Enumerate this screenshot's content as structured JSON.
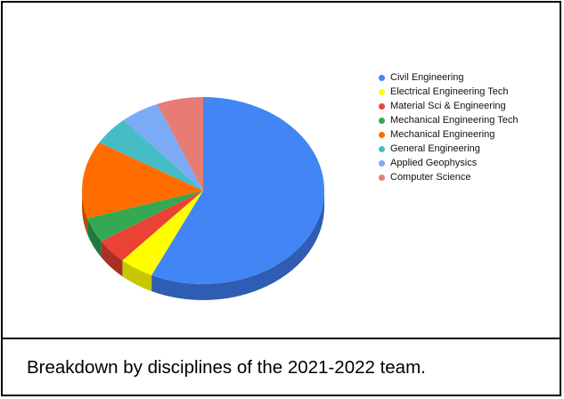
{
  "chart_data": {
    "type": "pie",
    "title": "",
    "legend_position": "right",
    "three_d": true,
    "slices": [
      {
        "label": "Civil Engineering",
        "value": 57.0,
        "color": "#4285f4",
        "side_color": "#2f5db3"
      },
      {
        "label": "Electrical Engineering Tech",
        "value": 4.6,
        "color": "#ffff00",
        "side_color": "#c7c700"
      },
      {
        "label": "Material Sci & Engineering",
        "value": 4.3,
        "color": "#ea4335",
        "side_color": "#a93026"
      },
      {
        "label": "Mechanical Engineering Tech",
        "value": 4.3,
        "color": "#34a853",
        "side_color": "#24773b"
      },
      {
        "label": "Mechanical Engineering",
        "value": 13.4,
        "color": "#ff6d01",
        "side_color": "#b84e00"
      },
      {
        "label": "General Engineering",
        "value": 5.0,
        "color": "#46bdc6",
        "side_color": "#2f8890"
      },
      {
        "label": "Applied Geophysics",
        "value": 5.2,
        "color": "#7baaf7",
        "side_color": "#567bb5"
      },
      {
        "label": "Computer Science",
        "value": 6.2,
        "color": "#e67c73",
        "side_color": "#a85951"
      }
    ]
  },
  "caption": "Breakdown by disciplines of the 2021-2022 team."
}
